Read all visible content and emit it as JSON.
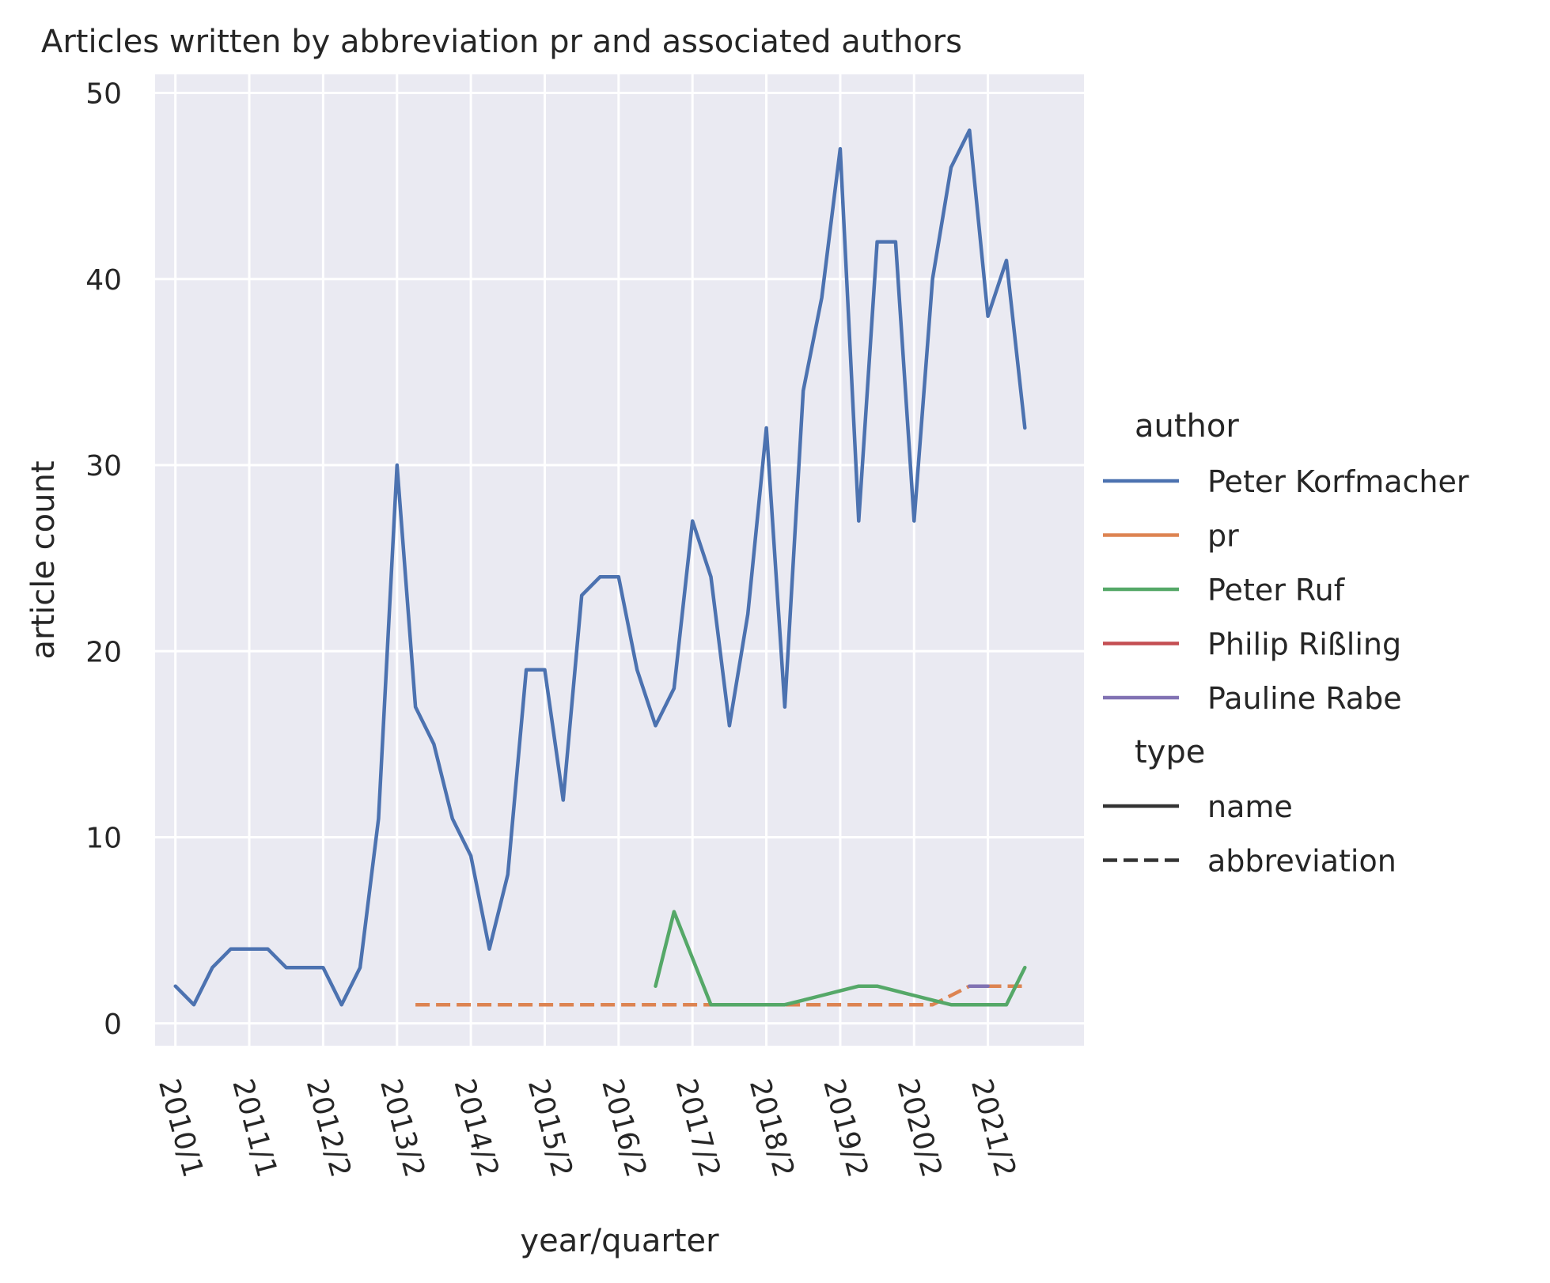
{
  "chart_data": {
    "type": "line",
    "title": "Articles written by abbreviation pr and associated authors",
    "xlabel": "year/quarter",
    "ylabel": "article count",
    "ylim": [
      -1.2,
      51
    ],
    "yticks": [
      0,
      10,
      20,
      30,
      40,
      50
    ],
    "x_range": [
      -1.1,
      49.2
    ],
    "xticks": [
      {
        "pos": 0,
        "label": "2010/1"
      },
      {
        "pos": 4,
        "label": "2011/1"
      },
      {
        "pos": 8,
        "label": "2012/2"
      },
      {
        "pos": 12,
        "label": "2013/2"
      },
      {
        "pos": 16,
        "label": "2014/2"
      },
      {
        "pos": 20,
        "label": "2015/2"
      },
      {
        "pos": 24,
        "label": "2016/2"
      },
      {
        "pos": 28,
        "label": "2017/2"
      },
      {
        "pos": 32,
        "label": "2018/2"
      },
      {
        "pos": 36,
        "label": "2019/2"
      },
      {
        "pos": 40,
        "label": "2020/2"
      },
      {
        "pos": 44,
        "label": "2021/2"
      }
    ],
    "grid": true,
    "legend_position": "right",
    "legend": {
      "hue_title": "author",
      "style_title": "type",
      "style_entries": [
        {
          "label": "name",
          "dash": "solid"
        },
        {
          "label": "abbreviation",
          "dash": "dashed"
        }
      ]
    },
    "series": [
      {
        "name": "Peter Korfmacher",
        "color": "#4c72b0",
        "dash": "solid",
        "x": [
          0,
          1,
          2,
          3,
          4,
          5,
          6,
          7,
          8,
          9,
          10,
          11,
          12,
          13,
          14,
          15,
          16,
          17,
          18,
          19,
          20,
          21,
          22,
          23,
          24,
          25,
          26,
          27,
          28,
          29,
          30,
          31,
          32,
          33,
          34,
          35,
          36,
          37,
          38,
          39,
          40,
          41,
          42,
          43,
          44,
          45,
          46
        ],
        "y": [
          2,
          1,
          3,
          4,
          4,
          4,
          3,
          3,
          3,
          1,
          3,
          11,
          30,
          17,
          15,
          11,
          9,
          4,
          8,
          19,
          19,
          12,
          23,
          24,
          24,
          19,
          16,
          18,
          27,
          24,
          16,
          22,
          32,
          17,
          34,
          39,
          47,
          27,
          42,
          42,
          27,
          40,
          46,
          48,
          38,
          41,
          32
        ]
      },
      {
        "name": "pr",
        "color": "#dd8452",
        "dash": "dashed",
        "x": [
          13,
          14,
          15,
          16,
          17,
          18,
          19,
          20,
          21,
          22,
          23,
          24,
          25,
          26,
          27,
          28,
          29,
          30,
          31,
          32,
          33,
          34,
          35,
          36,
          37,
          38,
          39,
          40,
          41,
          42,
          43,
          44,
          45,
          46
        ],
        "y": [
          1,
          1,
          1,
          1,
          1,
          1,
          1,
          1,
          1,
          1,
          1,
          1,
          1,
          1,
          1,
          1,
          1,
          1,
          1,
          1,
          1,
          1,
          1,
          1,
          1,
          1,
          1,
          1,
          1,
          1.5,
          2,
          2,
          2,
          2
        ]
      },
      {
        "name": "Peter Ruf",
        "color": "#55a868",
        "dash": "solid",
        "x": [
          26,
          27,
          28,
          29,
          30,
          31,
          32,
          33,
          34,
          35,
          36,
          37,
          38,
          39,
          40,
          41,
          42,
          43,
          44,
          45,
          46
        ],
        "y": [
          2,
          6,
          3.5,
          1,
          1,
          1,
          1,
          1,
          1.25,
          1.5,
          1.75,
          2,
          2,
          1.75,
          1.5,
          1.25,
          1,
          1,
          1,
          1,
          3
        ]
      },
      {
        "name": "Philip Rißling",
        "color": "#c44e52",
        "dash": "solid",
        "x": [],
        "y": []
      },
      {
        "name": "Pauline Rabe",
        "color": "#8172b3",
        "dash": "solid",
        "x": [
          43,
          44
        ],
        "y": [
          2,
          2
        ]
      }
    ]
  }
}
